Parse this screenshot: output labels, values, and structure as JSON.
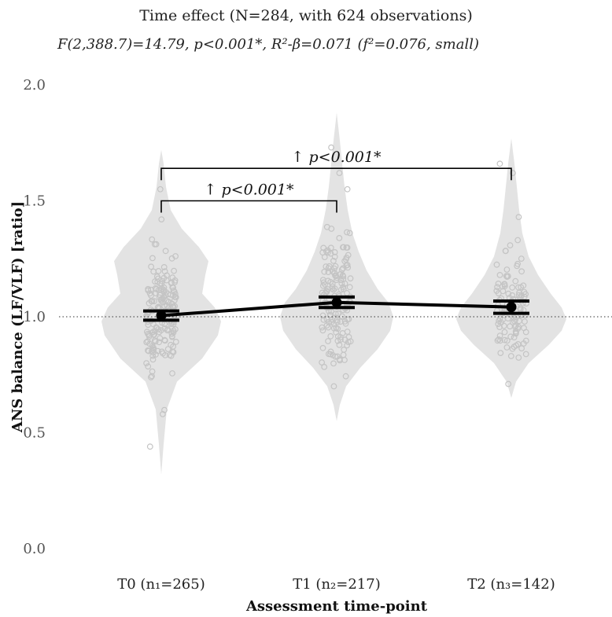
{
  "chart_data": {
    "type": "violin",
    "title": "Time effect (N=284, with 624 observations)",
    "subtitle": "F(2,388.7)=14.79, p<0.001*, R²-β=0.071 (f²=0.076, small)",
    "xlabel": "Assessment time-point",
    "ylabel": "ANS balance (LF/VLF) [ratio]",
    "ylim": [
      0.0,
      2.0
    ],
    "yticks": [
      0.0,
      0.5,
      1.0,
      1.5,
      2.0
    ],
    "ytick_labels": [
      "0.0",
      "0.5",
      "1.0",
      "1.5",
      "2.0"
    ],
    "reference_line": 1.0,
    "categories": [
      "T0 (n₁=265)",
      "T1 (n₂=217)",
      "T2 (n₃=142)"
    ],
    "means": [
      1.005,
      1.062,
      1.042
    ],
    "ci_lower": [
      0.985,
      1.04,
      1.015
    ],
    "ci_upper": [
      1.025,
      1.085,
      1.068
    ],
    "violins": [
      {
        "min": 0.32,
        "max": 1.72
      },
      {
        "min": 0.55,
        "max": 1.88
      },
      {
        "min": 0.65,
        "max": 1.77
      }
    ],
    "comparisons": [
      {
        "from": "T0 (n₁=265)",
        "to": "T1 (n₂=217)",
        "label": "↑ p<0.001*",
        "y": 1.5
      },
      {
        "from": "T0 (n₁=265)",
        "to": "T2 (n₃=142)",
        "label": "↑ p<0.001*",
        "y": 1.64
      }
    ],
    "colors": {
      "violin": "#e3e3e3",
      "points": "#c4c4c4",
      "mean_line": "#000000"
    },
    "grid": false
  }
}
